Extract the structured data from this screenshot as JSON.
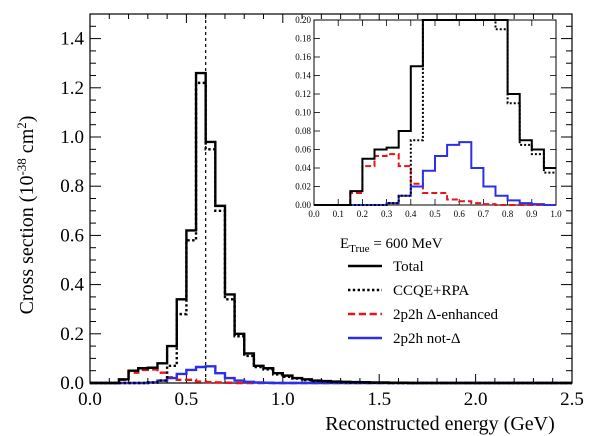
{
  "chart_data": {
    "type": "line",
    "xlabel": "Reconstructed energy (GeV)",
    "ylabel": "Cross section (10",
    "ylabel_sup": "-38",
    "ylabel_unit": " cm",
    "ylabel_unit_sup": "2",
    "ylabel_close": ")",
    "xlim": [
      0,
      2.5
    ],
    "ylim": [
      0,
      1.5
    ],
    "x_ticks": [
      "0.0",
      "0.5",
      "1.0",
      "1.5",
      "2.0",
      "2.5"
    ],
    "y_ticks": [
      "0.0",
      "0.2",
      "0.4",
      "0.6",
      "0.8",
      "1.0",
      "1.2",
      "1.4"
    ],
    "vertical_marker_x": 0.6,
    "legend": {
      "placement": "center-right",
      "header_prefix": "E",
      "header_sub": "True",
      "header_value": " = 600 MeV"
    },
    "bin_edges": [
      0.0,
      0.05,
      0.1,
      0.15,
      0.2,
      0.25,
      0.3,
      0.35,
      0.4,
      0.45,
      0.5,
      0.55,
      0.6,
      0.65,
      0.7,
      0.75,
      0.8,
      0.85,
      0.9,
      0.95,
      1.0,
      1.05,
      1.1,
      1.15,
      1.2,
      1.25,
      1.3,
      1.35,
      1.4,
      1.45,
      1.5,
      1.55,
      1.6,
      1.65,
      1.7,
      1.75,
      1.8,
      1.85,
      1.9,
      1.95,
      2.0,
      2.05,
      2.1,
      2.15,
      2.2,
      2.25,
      2.3,
      2.35,
      2.4,
      2.45,
      2.5
    ],
    "series": [
      {
        "name": "Total",
        "color": "#000000",
        "dash": "solid",
        "values": [
          0.0,
          0.0,
          0.0,
          0.015,
          0.05,
          0.06,
          0.062,
          0.08,
          0.15,
          0.34,
          0.62,
          1.26,
          0.98,
          0.72,
          0.36,
          0.2,
          0.12,
          0.07,
          0.06,
          0.04,
          0.03,
          0.02,
          0.015,
          0.01,
          0.008,
          0.006,
          0.005,
          0.004,
          0.003,
          0.002,
          0.002,
          0.001,
          0.001,
          0,
          0,
          0,
          0,
          0,
          0,
          0,
          0,
          0,
          0,
          0,
          0,
          0,
          0,
          0,
          0,
          0
        ]
      },
      {
        "name": "CCQE+RPA",
        "color": "#000000",
        "dash": "dotted",
        "values": [
          0.0,
          0.0,
          0.0,
          0.0,
          0.0,
          0.0,
          0.002,
          0.01,
          0.07,
          0.28,
          0.58,
          1.22,
          0.95,
          0.7,
          0.34,
          0.19,
          0.11,
          0.065,
          0.055,
          0.035,
          0.025,
          0.018,
          0.012,
          0.008,
          0.006,
          0.004,
          0.003,
          0.002,
          0.002,
          0.001,
          0.001,
          0,
          0,
          0,
          0,
          0,
          0,
          0,
          0,
          0,
          0,
          0,
          0,
          0,
          0,
          0,
          0,
          0,
          0,
          0
        ]
      },
      {
        "name": "2p2h Δ-enhanced",
        "color": "#e8141c",
        "dash": "dashed",
        "values": [
          0.0,
          0.0,
          0.0,
          0.013,
          0.042,
          0.053,
          0.055,
          0.042,
          0.023,
          0.013,
          0.013,
          0.006,
          0.004,
          0.002,
          0.001,
          0,
          0,
          0,
          0,
          0,
          0,
          0,
          0,
          0,
          0,
          0,
          0,
          0,
          0,
          0,
          0,
          0,
          0,
          0,
          0,
          0,
          0,
          0,
          0,
          0,
          0,
          0,
          0,
          0,
          0,
          0,
          0,
          0,
          0,
          0
        ]
      },
      {
        "name": "2p2h not-Δ",
        "color": "#2b30e8",
        "dash": "solid",
        "values": [
          0.0,
          0.0,
          0.0,
          0.0,
          0.0,
          0.0,
          0.002,
          0.01,
          0.02,
          0.037,
          0.053,
          0.065,
          0.068,
          0.04,
          0.02,
          0.01,
          0.005,
          0.002,
          0.001,
          0,
          0,
          0,
          0,
          0,
          0,
          0,
          0,
          0,
          0,
          0,
          0,
          0,
          0,
          0,
          0,
          0,
          0,
          0,
          0,
          0,
          0,
          0,
          0,
          0,
          0,
          0,
          0,
          0,
          0,
          0
        ]
      }
    ],
    "inset": {
      "xlim": [
        0,
        1.0
      ],
      "ylim": [
        0,
        0.2
      ],
      "x_ticks": [
        "0.0",
        "0.1",
        "0.2",
        "0.3",
        "0.4",
        "0.5",
        "0.6",
        "0.7",
        "0.8",
        "0.9",
        "1.0"
      ],
      "y_ticks": [
        "0.00",
        "0.02",
        "0.04",
        "0.06",
        "0.08",
        "0.10",
        "0.12",
        "0.14",
        "0.16",
        "0.18",
        "0.20"
      ],
      "vertical_marker_x": 0.4
    }
  }
}
